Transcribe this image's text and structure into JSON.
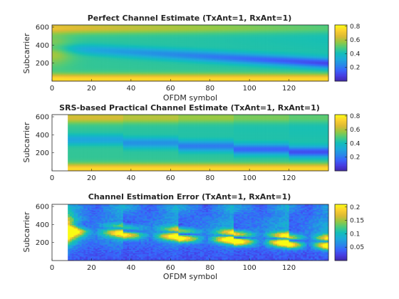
{
  "chart_data": [
    {
      "type": "heatmap",
      "variant": "perfect",
      "title": "Perfect Channel Estimate (TxAnt=1, RxAnt=1)",
      "xlabel": "OFDM symbol",
      "ylabel": "Subcarrier",
      "xlim": [
        0,
        140
      ],
      "ylim": [
        0,
        624
      ],
      "xticks": [
        0,
        20,
        40,
        60,
        80,
        100,
        120
      ],
      "yticks": [
        200,
        400,
        600
      ],
      "colormap": "parula",
      "clim": [
        0,
        0.82
      ],
      "colorbar_ticks": [
        "0.2",
        "0.4",
        "0.6",
        "0.8"
      ],
      "colorbar_values": [
        0.2,
        0.4,
        0.6,
        0.8
      ],
      "data_start_symbol": 0,
      "block_boundaries": []
    },
    {
      "type": "heatmap",
      "variant": "practical",
      "title": "SRS-based Practical Channel Estimate (TxAnt=1, RxAnt=1)",
      "xlabel": "",
      "ylabel": "Subcarrier",
      "xlim": [
        0,
        140
      ],
      "ylim": [
        0,
        624
      ],
      "xticks": [
        0,
        20,
        40,
        60,
        80,
        100,
        120
      ],
      "yticks": [
        200,
        400,
        600
      ],
      "colormap": "parula",
      "clim": [
        0,
        0.82
      ],
      "colorbar_ticks": [
        "0.2",
        "0.4",
        "0.6",
        "0.8"
      ],
      "colorbar_values": [
        0.2,
        0.4,
        0.6,
        0.8
      ],
      "data_start_symbol": 8,
      "block_boundaries": [
        8,
        36,
        64,
        92,
        120,
        140
      ]
    },
    {
      "type": "heatmap",
      "variant": "error",
      "title": "Channel Estimation Error (TxAnt=1, RxAnt=1)",
      "xlabel": "OFDM symbol",
      "ylabel": "Subcarrier",
      "xlim": [
        0,
        140
      ],
      "ylim": [
        0,
        624
      ],
      "xticks": [
        0,
        20,
        40,
        60,
        80,
        100,
        120
      ],
      "yticks": [
        200,
        400,
        600
      ],
      "colormap": "parula",
      "clim": [
        0,
        0.21
      ],
      "colorbar_ticks": [
        "0.05",
        "0.1",
        "0.15",
        "0.2"
      ],
      "colorbar_values": [
        0.05,
        0.1,
        0.15,
        0.2
      ],
      "data_start_symbol": 8,
      "block_boundaries": [
        8,
        36,
        64,
        92,
        120,
        140
      ]
    }
  ]
}
